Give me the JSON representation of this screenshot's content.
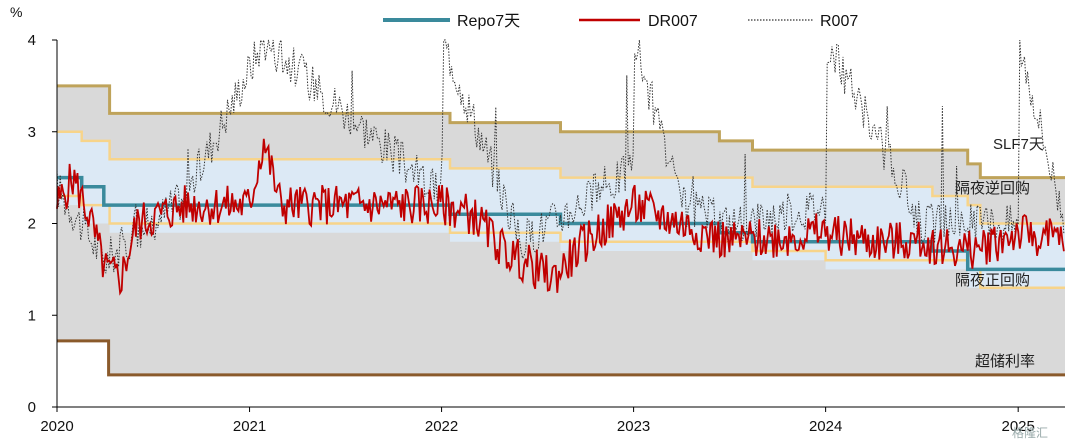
{
  "chart_data": {
    "type": "line",
    "unit_label": "%",
    "y_ticks": [
      "0",
      "1",
      "2",
      "3",
      "4"
    ],
    "ylim": [
      0,
      4
    ],
    "x_tick_labels": [
      "2020",
      "2021",
      "2022",
      "2023",
      "2024",
      "2025"
    ],
    "xlim": [
      "2020-01-01",
      "2025-03-31"
    ],
    "grid": false,
    "legend_position": "top",
    "colors": {
      "repo": "#3a8a9c",
      "dr": "#c00000",
      "r": "#333333",
      "slf": "#bfa35a",
      "reverse": "#f7d48a",
      "excess": "#8a5a2b",
      "outer_band": "#d9d9d9",
      "inner_band": "#dce9f5"
    },
    "series": [
      {
        "name": "Repo7天",
        "kind": "step",
        "points": [
          [
            "2020-01-01",
            2.5
          ],
          [
            "2020-02-17",
            2.4
          ],
          [
            "2020-03-30",
            2.2
          ],
          [
            "2020-05-20",
            2.2
          ],
          [
            "2021-12-20",
            2.2
          ],
          [
            "2022-01-17",
            2.1
          ],
          [
            "2022-08-15",
            2.0
          ],
          [
            "2023-06-13",
            1.9
          ],
          [
            "2023-08-15",
            1.8
          ],
          [
            "2024-06-20",
            1.8
          ],
          [
            "2024-07-22",
            1.7
          ],
          [
            "2024-09-27",
            1.5
          ],
          [
            "2025-03-31",
            1.5
          ]
        ]
      },
      {
        "name": "DR007",
        "kind": "daily",
        "points": [
          [
            "2020-01-01",
            2.2
          ],
          [
            "2020-02-01",
            2.5
          ],
          [
            "2020-03-01",
            2.1
          ],
          [
            "2020-04-01",
            1.5
          ],
          [
            "2020-05-01",
            1.4
          ],
          [
            "2020-06-01",
            2.0
          ],
          [
            "2020-09-01",
            2.2
          ],
          [
            "2021-01-01",
            2.2
          ],
          [
            "2021-01-28",
            2.9
          ],
          [
            "2021-03-01",
            2.2
          ],
          [
            "2022-01-01",
            2.2
          ],
          [
            "2022-03-01",
            2.1
          ],
          [
            "2022-05-01",
            1.7
          ],
          [
            "2022-08-01",
            1.4
          ],
          [
            "2022-10-01",
            1.8
          ],
          [
            "2023-01-01",
            2.2
          ],
          [
            "2023-04-01",
            2.0
          ],
          [
            "2023-07-01",
            1.8
          ],
          [
            "2024-01-01",
            1.9
          ],
          [
            "2024-04-01",
            1.8
          ],
          [
            "2024-07-01",
            1.8
          ],
          [
            "2024-10-01",
            1.7
          ],
          [
            "2025-01-01",
            1.9
          ],
          [
            "2025-03-31",
            1.8
          ]
        ]
      },
      {
        "name": "R007",
        "kind": "daily",
        "points": [
          [
            "2020-01-01",
            2.4
          ],
          [
            "2020-04-01",
            1.6
          ],
          [
            "2020-09-01",
            2.3
          ],
          [
            "2021-01-28",
            4.0
          ],
          [
            "2022-01-01",
            2.3
          ],
          [
            "2022-01-04",
            4.0
          ],
          [
            "2022-06-01",
            1.8
          ],
          [
            "2022-12-30",
            2.6
          ],
          [
            "2023-01-03",
            4.0
          ],
          [
            "2023-04-01",
            2.2
          ],
          [
            "2023-07-01",
            2.0
          ],
          [
            "2024-01-01",
            2.2
          ],
          [
            "2024-01-02",
            4.0
          ],
          [
            "2024-07-01",
            2.0
          ],
          [
            "2025-01-01",
            2.0
          ],
          [
            "2025-01-02",
            4.0
          ],
          [
            "2025-03-31",
            2.0
          ]
        ]
      }
    ],
    "bands": [
      {
        "name": "SLF7天",
        "points": [
          [
            "2020-01-01",
            3.5
          ],
          [
            "2020-04-10",
            3.2
          ],
          [
            "2022-01-17",
            3.1
          ],
          [
            "2022-08-15",
            3.0
          ],
          [
            "2023-06-13",
            2.9
          ],
          [
            "2023-08-15",
            2.8
          ],
          [
            "2024-09-27",
            2.65
          ],
          [
            "2024-10-21",
            2.5
          ],
          [
            "2025-03-31",
            2.5
          ]
        ]
      },
      {
        "name": "隔夜逆回购",
        "points": [
          [
            "2020-01-01",
            3.0
          ],
          [
            "2020-02-17",
            2.9
          ],
          [
            "2020-04-10",
            2.7
          ],
          [
            "2022-01-17",
            2.6
          ],
          [
            "2022-08-15",
            2.5
          ],
          [
            "2023-08-15",
            2.4
          ],
          [
            "2024-07-22",
            2.3
          ],
          [
            "2024-09-27",
            2.2
          ],
          [
            "2024-10-21",
            2.0
          ],
          [
            "2025-03-31",
            2.0
          ]
        ]
      },
      {
        "name": "隔夜正回购",
        "points": [
          [
            "2020-01-01",
            2.3
          ],
          [
            "2020-02-17",
            2.2
          ],
          [
            "2020-04-10",
            2.0
          ],
          [
            "2022-01-17",
            1.9
          ],
          [
            "2022-08-15",
            1.8
          ],
          [
            "2023-08-15",
            1.7
          ],
          [
            "2024-01-01",
            1.6
          ],
          [
            "2024-09-27",
            1.5
          ],
          [
            "2024-10-21",
            1.3
          ],
          [
            "2025-03-31",
            1.3
          ]
        ]
      },
      {
        "name": "超储利率",
        "points": [
          [
            "2020-01-01",
            0.72
          ],
          [
            "2020-04-07",
            0.72
          ],
          [
            "2020-04-08",
            0.35
          ],
          [
            "2025-03-31",
            0.35
          ]
        ]
      }
    ],
    "annotations": [
      "SLF7天",
      "隔夜逆回购",
      "隔夜正回购",
      "超储利率"
    ],
    "watermark": "格隆汇"
  }
}
